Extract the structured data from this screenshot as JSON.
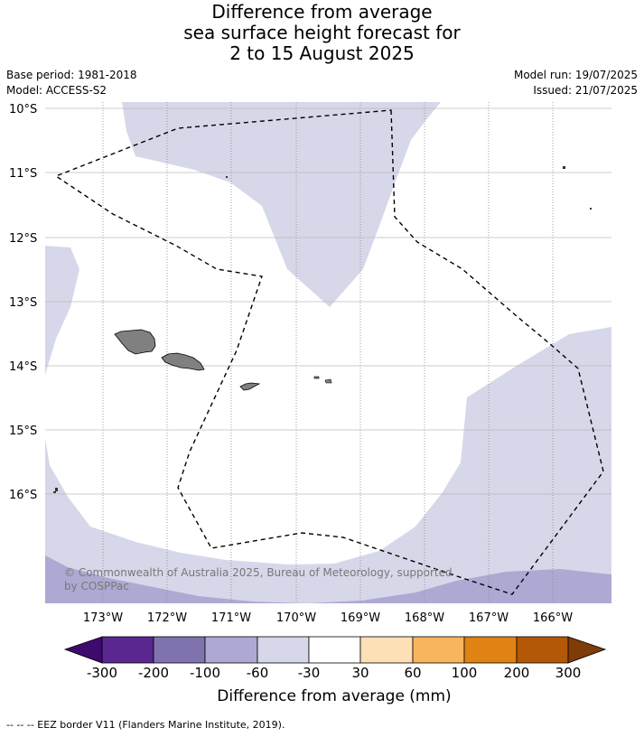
{
  "title": {
    "line1": "Difference from average",
    "line2": "sea surface height forecast for",
    "line3": "2 to 15 August 2025"
  },
  "meta": {
    "base_period": "Base period: 1981-2018",
    "model": "Model: ACCESS-S2",
    "model_run": "Model run: 19/07/2025",
    "issued": "Issued: 21/07/2025"
  },
  "map": {
    "lat_labels": [
      "10°S",
      "11°S",
      "12°S",
      "13°S",
      "14°S",
      "15°S",
      "16°S"
    ],
    "lon_labels": [
      "173°W",
      "172°W",
      "171°W",
      "170°W",
      "169°W",
      "168°W",
      "167°W",
      "166°W"
    ],
    "copyright_line1": "© Commonwealth of Australia 2025, Bureau of Meteorology, supported",
    "copyright_line2": "by COSPPac",
    "colors": {
      "ocean_neutral": "#ffffff",
      "lavender_light": "#d7d7ea",
      "lavender_mid": "#aea9d2",
      "land": "#808080"
    }
  },
  "colorbar": {
    "title": "Difference from average (mm)",
    "labels": [
      "-300",
      "-200",
      "-100",
      "-60",
      "-30",
      "30",
      "60",
      "100",
      "200",
      "300"
    ],
    "colors": [
      "#3f0a6e",
      "#5a2790",
      "#8073ad",
      "#aea9d2",
      "#d7d7ea",
      "#ffffff",
      "#fde0b6",
      "#f9b55e",
      "#e08214",
      "#b35807",
      "#7f3b08"
    ]
  },
  "footnote": "--  --  -- EEZ border V11 (Flanders Marine Institute, 2019)."
}
